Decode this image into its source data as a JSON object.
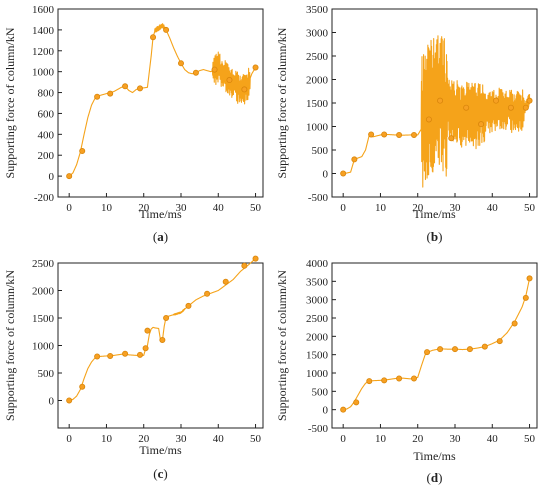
{
  "colors": {
    "series": "#F5A31A",
    "marker_fill": "#F7A022",
    "marker_edge": "#D9860B",
    "axis": "#222222"
  },
  "chart_data": [
    {
      "panel": "(a)",
      "type": "line",
      "xlabel": "Time/ms",
      "ylabel": "Supporting force of column/kN",
      "xlim": [
        -3,
        52
      ],
      "ylim": [
        -200,
        1600
      ],
      "xticks": [
        0,
        10,
        20,
        30,
        40,
        50
      ],
      "yticks": [
        -200,
        0,
        200,
        400,
        600,
        800,
        1000,
        1200,
        1400,
        1600
      ],
      "grid": false,
      "series": [
        {
          "points": [
            [
              0,
              0
            ],
            [
              1,
              30
            ],
            [
              2,
              110
            ],
            [
              3,
              230
            ],
            [
              4,
              400
            ],
            [
              5,
              560
            ],
            [
              6,
              680
            ],
            [
              7,
              750
            ],
            [
              8,
              770
            ],
            [
              10,
              790
            ],
            [
              12,
              810
            ],
            [
              14,
              850
            ],
            [
              15,
              860
            ],
            [
              16,
              820
            ],
            [
              17,
              800
            ],
            [
              18,
              830
            ],
            [
              19,
              840
            ],
            [
              20,
              845
            ],
            [
              21,
              850
            ],
            [
              22,
              1150
            ],
            [
              22.5,
              1330
            ],
            [
              23,
              1390
            ],
            [
              24,
              1420
            ],
            [
              25,
              1440
            ],
            [
              26,
              1400
            ],
            [
              27,
              1320
            ],
            [
              28,
              1230
            ],
            [
              29,
              1150
            ],
            [
              30,
              1080
            ],
            [
              31,
              1020
            ],
            [
              32,
              990
            ],
            [
              33,
              980
            ],
            [
              34,
              990
            ],
            [
              35,
              1010
            ],
            [
              36,
              1020
            ],
            [
              37,
              1010
            ],
            [
              38,
              1000
            ],
            [
              39,
              1020
            ],
            [
              40,
              1040
            ],
            [
              41,
              990
            ],
            [
              42,
              960
            ],
            [
              43,
              920
            ],
            [
              44,
              880
            ],
            [
              45,
              850
            ],
            [
              46,
              830
            ],
            [
              47,
              830
            ],
            [
              48,
              880
            ],
            [
              49,
              980
            ],
            [
              50,
              1040
            ]
          ],
          "markers": [
            [
              0,
              0
            ],
            [
              3.5,
              240
            ],
            [
              7.5,
              760
            ],
            [
              11,
              790
            ],
            [
              15,
              860
            ],
            [
              19,
              840
            ],
            [
              22.5,
              1330
            ],
            [
              26,
              1400
            ],
            [
              30,
              1080
            ],
            [
              34,
              990
            ],
            [
              39,
              1020
            ],
            [
              43,
              920
            ],
            [
              47,
              830
            ],
            [
              50,
              1040
            ]
          ],
          "noise": [
            {
              "from": 23,
              "to": 26,
              "amp": 25
            },
            {
              "from": 38.5,
              "to": 48.5,
              "amp": 150
            }
          ]
        }
      ]
    },
    {
      "panel": "(b)",
      "type": "line",
      "xlabel": "Time/ms",
      "ylabel": "Supporting force of column/kN",
      "xlim": [
        -3,
        52
      ],
      "ylim": [
        -500,
        3500
      ],
      "xticks": [
        0,
        10,
        20,
        30,
        40,
        50
      ],
      "yticks": [
        -500,
        0,
        500,
        1000,
        1500,
        2000,
        2500,
        3000,
        3500
      ],
      "grid": false,
      "series": [
        {
          "points": [
            [
              0,
              0
            ],
            [
              1,
              10
            ],
            [
              2,
              30
            ],
            [
              3,
              300
            ],
            [
              4,
              330
            ],
            [
              5,
              360
            ],
            [
              6,
              500
            ],
            [
              7,
              820
            ],
            [
              8,
              780
            ],
            [
              9,
              800
            ],
            [
              10,
              820
            ],
            [
              12,
              830
            ],
            [
              14,
              820
            ],
            [
              16,
              815
            ],
            [
              18,
              820
            ],
            [
              20,
              820
            ],
            [
              21,
              950
            ],
            [
              22,
              1300
            ],
            [
              23,
              1400
            ],
            [
              24,
              1500
            ],
            [
              25,
              1600
            ],
            [
              26,
              1500
            ],
            [
              27,
              1450
            ],
            [
              28,
              1400
            ],
            [
              30,
              1300
            ],
            [
              32,
              1250
            ],
            [
              34,
              1300
            ],
            [
              36,
              1200
            ],
            [
              38,
              1350
            ],
            [
              40,
              1300
            ],
            [
              42,
              1400
            ],
            [
              44,
              1350
            ],
            [
              46,
              1300
            ],
            [
              48,
              1350
            ],
            [
              50,
              1550
            ]
          ],
          "markers": [
            [
              0,
              0
            ],
            [
              3,
              300
            ],
            [
              7.5,
              830
            ],
            [
              11,
              830
            ],
            [
              15,
              820
            ],
            [
              19,
              820
            ],
            [
              23,
              1150
            ],
            [
              26,
              1550
            ],
            [
              29,
              750
            ],
            [
              33,
              1400
            ],
            [
              37,
              1050
            ],
            [
              41,
              1550
            ],
            [
              45,
              1400
            ],
            [
              49,
              1400
            ],
            [
              50,
              1550
            ]
          ],
          "noise": [
            {
              "from": 21,
              "to": 28,
              "amp": 1500
            },
            {
              "from": 28,
              "to": 38,
              "amp": 700
            },
            {
              "from": 38,
              "to": 48.5,
              "amp": 450
            },
            {
              "from": 48.5,
              "to": 50,
              "amp": 150
            }
          ]
        }
      ]
    },
    {
      "panel": "(c)",
      "type": "line",
      "xlabel": "Time/ms",
      "ylabel": "Supporting force of column/kN",
      "xlim": [
        -3,
        52
      ],
      "ylim": [
        -500,
        2500
      ],
      "xticks": [
        0,
        10,
        20,
        30,
        40,
        50
      ],
      "yticks": [
        0,
        500,
        1000,
        1500,
        2000,
        2500
      ],
      "grid": false,
      "series": [
        {
          "points": [
            [
              0,
              0
            ],
            [
              1,
              20
            ],
            [
              2,
              80
            ],
            [
              3,
              200
            ],
            [
              4,
              400
            ],
            [
              5,
              580
            ],
            [
              6,
              700
            ],
            [
              7,
              780
            ],
            [
              8,
              800
            ],
            [
              10,
              810
            ],
            [
              12,
              820
            ],
            [
              14,
              840
            ],
            [
              15,
              850
            ],
            [
              16,
              830
            ],
            [
              18,
              820
            ],
            [
              19,
              830
            ],
            [
              20,
              820
            ],
            [
              20.5,
              940
            ],
            [
              21,
              1000
            ],
            [
              21.5,
              1200
            ],
            [
              22,
              1300
            ],
            [
              22.5,
              1330
            ],
            [
              23,
              1320
            ],
            [
              24,
              1310
            ],
            [
              24.5,
              1100
            ],
            [
              25,
              1090
            ],
            [
              25.5,
              1350
            ],
            [
              26,
              1520
            ],
            [
              28,
              1560
            ],
            [
              30,
              1600
            ],
            [
              32,
              1720
            ],
            [
              34,
              1830
            ],
            [
              36,
              1900
            ],
            [
              38,
              1950
            ],
            [
              40,
              2000
            ],
            [
              42,
              2100
            ],
            [
              44,
              2200
            ],
            [
              46,
              2350
            ],
            [
              48,
              2460
            ],
            [
              50,
              2580
            ]
          ],
          "markers": [
            [
              0,
              0
            ],
            [
              3.5,
              250
            ],
            [
              7.5,
              800
            ],
            [
              11,
              810
            ],
            [
              15,
              850
            ],
            [
              19,
              830
            ],
            [
              20.5,
              950
            ],
            [
              21,
              1270
            ],
            [
              25,
              1100
            ],
            [
              26,
              1500
            ],
            [
              32,
              1720
            ],
            [
              37,
              1940
            ],
            [
              42,
              2160
            ],
            [
              47,
              2450
            ],
            [
              50,
              2580
            ]
          ],
          "noise": [
            {
              "from": 28,
              "to": 31,
              "amp": 15
            }
          ]
        }
      ]
    },
    {
      "panel": "(d)",
      "type": "line",
      "xlabel": "Time/ms",
      "ylabel": "Supporting force of column/kN",
      "xlim": [
        -3,
        52
      ],
      "ylim": [
        -500,
        4000
      ],
      "xticks": [
        0,
        10,
        20,
        30,
        40,
        50
      ],
      "yticks": [
        -500,
        0,
        500,
        1000,
        1500,
        2000,
        2500,
        3000,
        3500,
        4000
      ],
      "grid": false,
      "series": [
        {
          "points": [
            [
              0,
              0
            ],
            [
              1,
              20
            ],
            [
              2,
              80
            ],
            [
              3,
              220
            ],
            [
              4,
              400
            ],
            [
              5,
              580
            ],
            [
              6,
              720
            ],
            [
              7,
              780
            ],
            [
              8,
              790
            ],
            [
              10,
              800
            ],
            [
              12,
              820
            ],
            [
              14,
              850
            ],
            [
              16,
              860
            ],
            [
              18,
              840
            ],
            [
              19,
              850
            ],
            [
              20,
              880
            ],
            [
              21,
              1200
            ],
            [
              22,
              1500
            ],
            [
              23,
              1580
            ],
            [
              24,
              1620
            ],
            [
              26,
              1660
            ],
            [
              28,
              1650
            ],
            [
              30,
              1650
            ],
            [
              32,
              1640
            ],
            [
              34,
              1650
            ],
            [
              36,
              1680
            ],
            [
              38,
              1720
            ],
            [
              40,
              1800
            ],
            [
              42,
              1900
            ],
            [
              44,
              2100
            ],
            [
              46,
              2400
            ],
            [
              48,
              2800
            ],
            [
              49,
              3100
            ],
            [
              50,
              3580
            ]
          ],
          "markers": [
            [
              0,
              0
            ],
            [
              3.5,
              200
            ],
            [
              7,
              780
            ],
            [
              11,
              800
            ],
            [
              15,
              850
            ],
            [
              19,
              850
            ],
            [
              22.5,
              1570
            ],
            [
              26,
              1650
            ],
            [
              30,
              1650
            ],
            [
              34,
              1650
            ],
            [
              38,
              1720
            ],
            [
              42,
              1870
            ],
            [
              46,
              2350
            ],
            [
              49,
              3050
            ],
            [
              50,
              3580
            ]
          ],
          "noise": []
        }
      ]
    }
  ]
}
